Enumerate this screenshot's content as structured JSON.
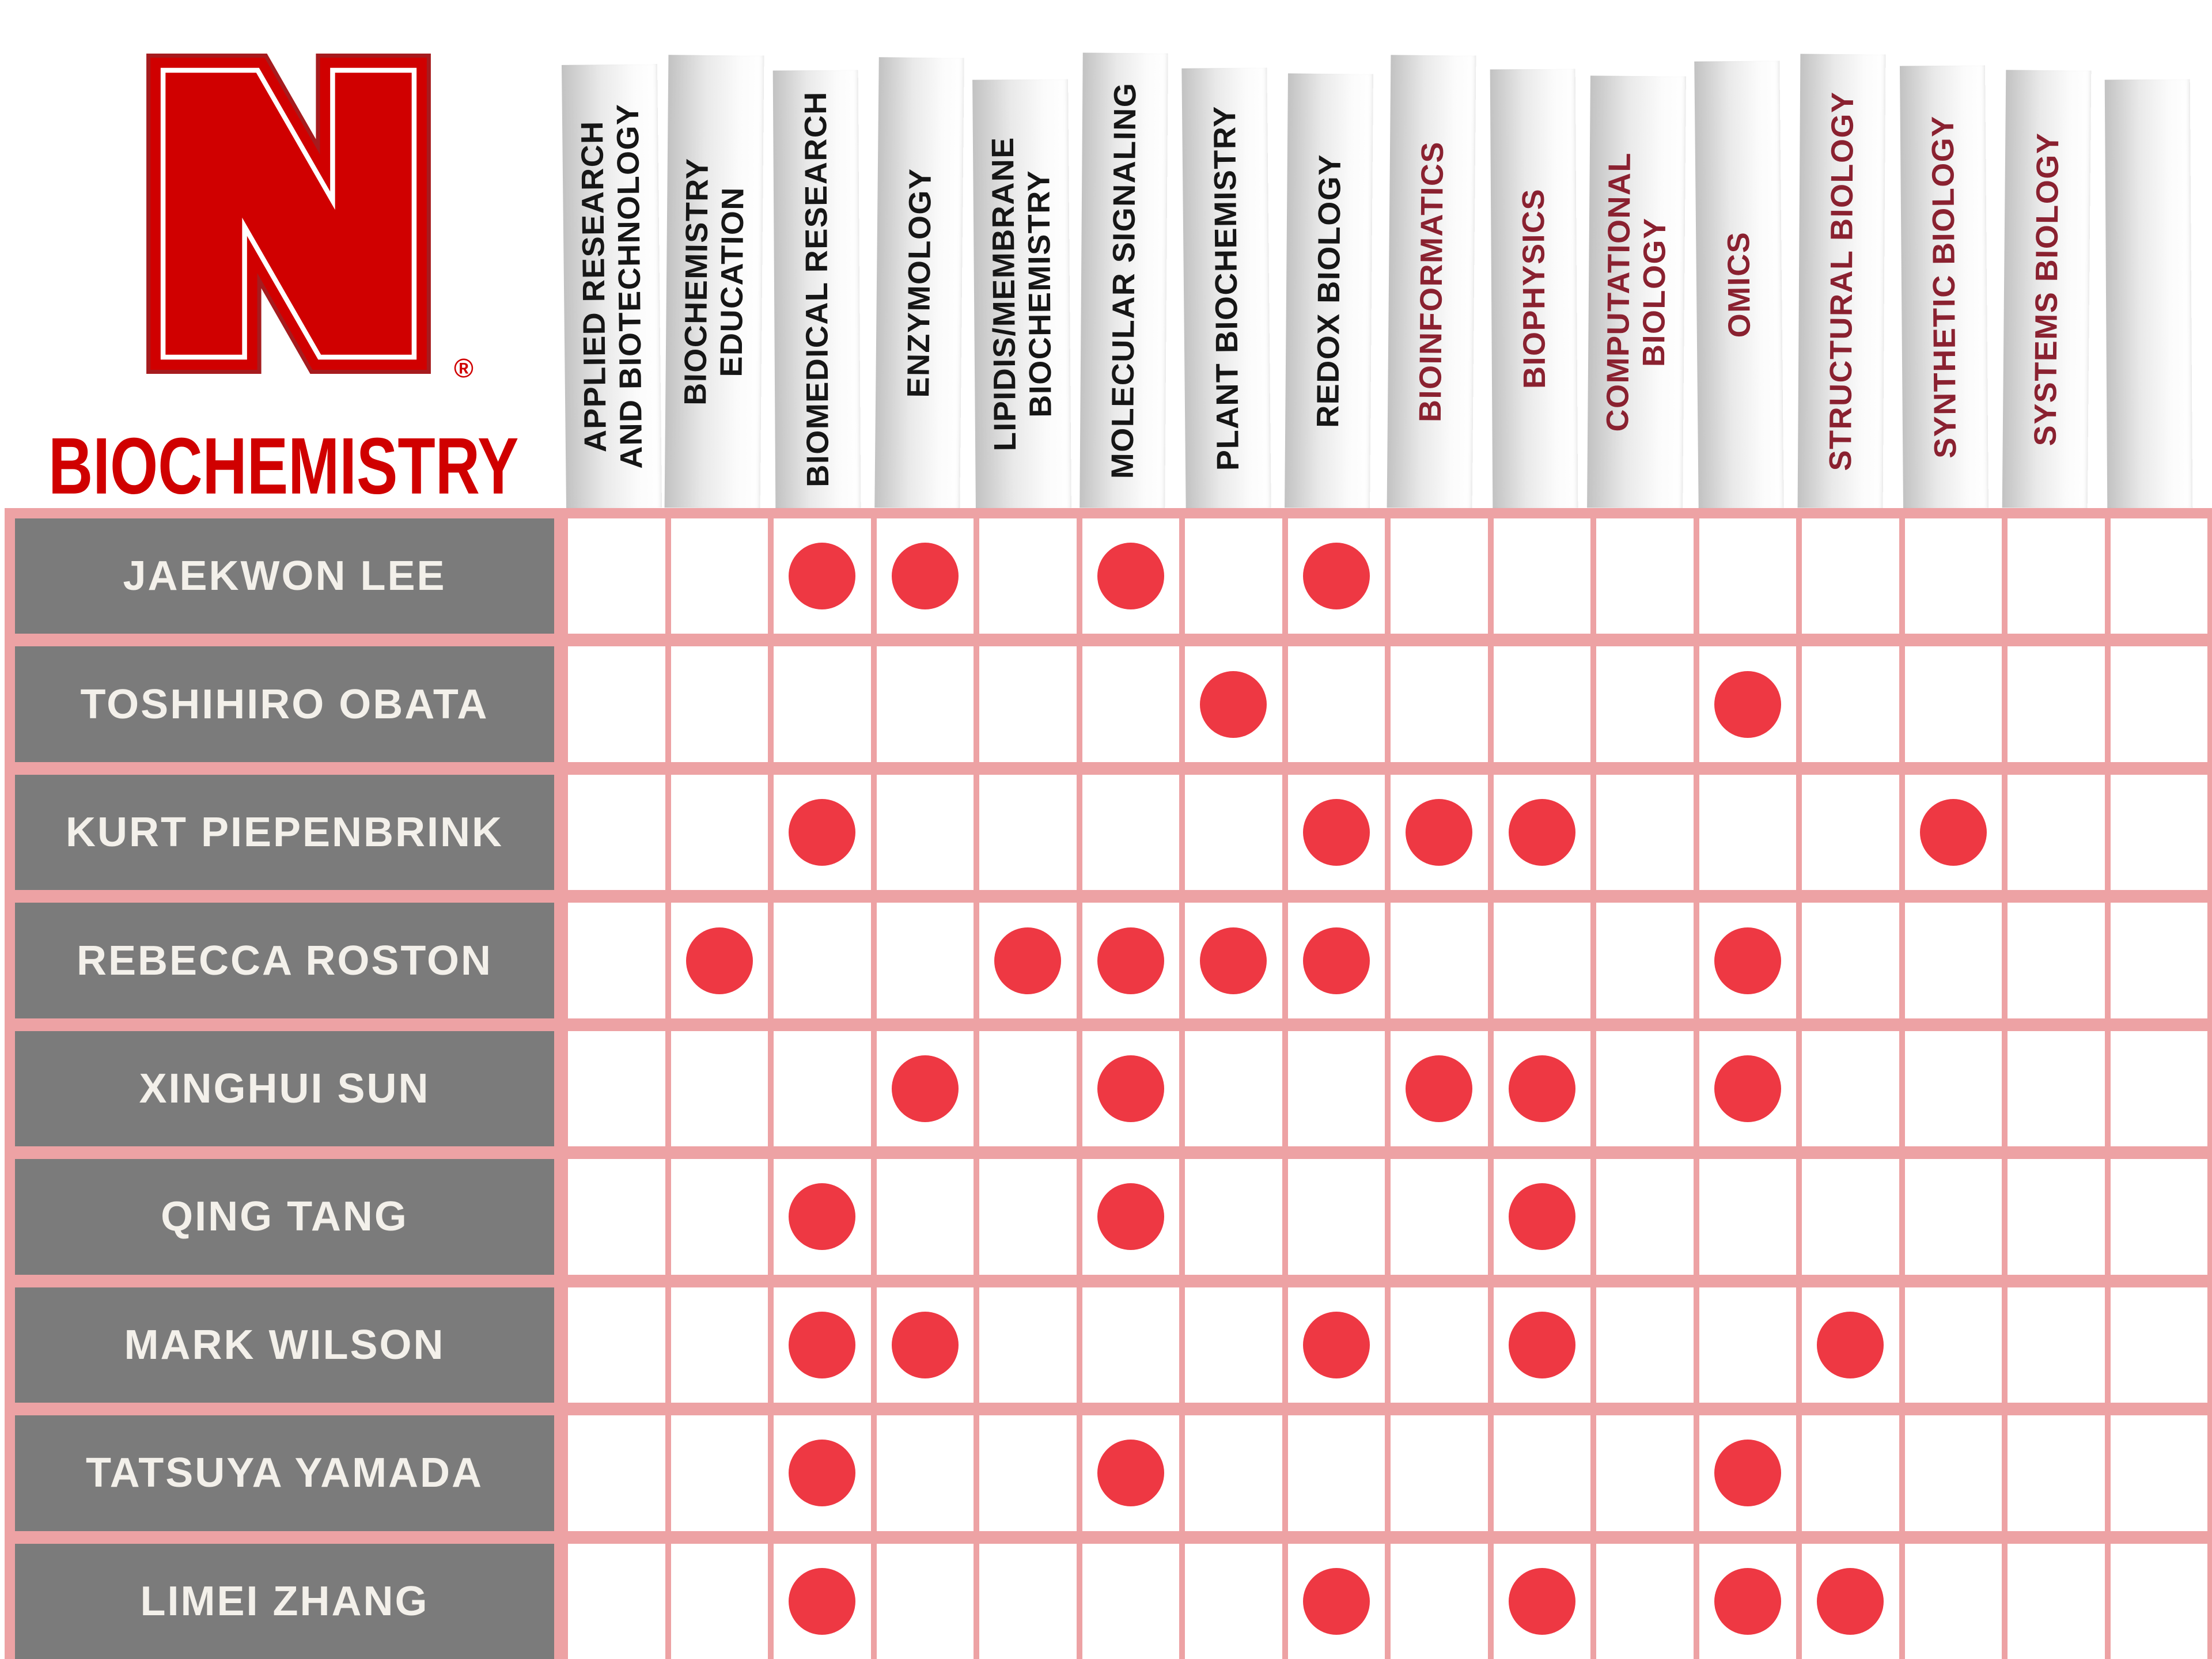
{
  "brand": {
    "title": "BIOCHEMISTRY",
    "logo": "nebraska-block-n",
    "registered_mark": "®",
    "logo_color": "#d00000"
  },
  "colors": {
    "scarlet": "#d00000",
    "dot_red": "#ee3843",
    "grid_pink": "#eda2a4",
    "label_gray": "#7b7b7b",
    "label_text": "#f3f0ea",
    "header_black": "#161616",
    "header_maroon": "#8a2130"
  },
  "chart_data": {
    "type": "heatmap",
    "title": "BIOCHEMISTRY faculty research-area matrix",
    "legend_position": "none",
    "grid": true,
    "columns": [
      {
        "label": "APPLIED RESEARCH\nAND BIOTECHNOLOGY",
        "accent": "black"
      },
      {
        "label": "BIOCHEMISTRY\nEDUCATION",
        "accent": "black"
      },
      {
        "label": "BIOMEDICAL RESEARCH",
        "accent": "black"
      },
      {
        "label": "ENZYMOLOGY",
        "accent": "black"
      },
      {
        "label": "LIPIDIS/MEMBRANE\nBIOCHEMISTRY",
        "accent": "black"
      },
      {
        "label": "MOLECULAR SIGNALING",
        "accent": "black"
      },
      {
        "label": "PLANT BIOCHEMISTRY",
        "accent": "black"
      },
      {
        "label": "REDOX BIOLOGY",
        "accent": "black"
      },
      {
        "label": "BIOINFORMATICS",
        "accent": "maroon"
      },
      {
        "label": "BIOPHYSICS",
        "accent": "maroon"
      },
      {
        "label": "COMPUTATIONAL\nBIOLOGY",
        "accent": "maroon"
      },
      {
        "label": "OMICS",
        "accent": "maroon"
      },
      {
        "label": "STRUCTURAL BIOLOGY",
        "accent": "maroon"
      },
      {
        "label": "SYNTHETIC BIOLOGY",
        "accent": "maroon"
      },
      {
        "label": "SYSTEMS BIOLOGY",
        "accent": "maroon"
      },
      {
        "label": "",
        "accent": "black"
      }
    ],
    "rows": [
      {
        "name": "JAEKWON LEE",
        "dots": [
          3,
          4,
          6,
          8
        ]
      },
      {
        "name": "TOSHIHIRO OBATA",
        "dots": [
          7,
          12
        ]
      },
      {
        "name": "KURT PIEPENBRINK",
        "dots": [
          3,
          8,
          9,
          10,
          14
        ]
      },
      {
        "name": "REBECCA ROSTON",
        "dots": [
          2,
          5,
          6,
          7,
          8,
          12
        ]
      },
      {
        "name": "XINGHUI SUN",
        "dots": [
          4,
          6,
          9,
          10,
          12
        ]
      },
      {
        "name": "QING TANG",
        "dots": [
          3,
          6,
          10
        ]
      },
      {
        "name": "MARK WILSON",
        "dots": [
          3,
          4,
          8,
          10,
          13
        ]
      },
      {
        "name": "TATSUYA YAMADA",
        "dots": [
          3,
          6,
          12
        ]
      },
      {
        "name": "LIMEI ZHANG",
        "dots": [
          3,
          8,
          10,
          12,
          13
        ]
      }
    ]
  }
}
